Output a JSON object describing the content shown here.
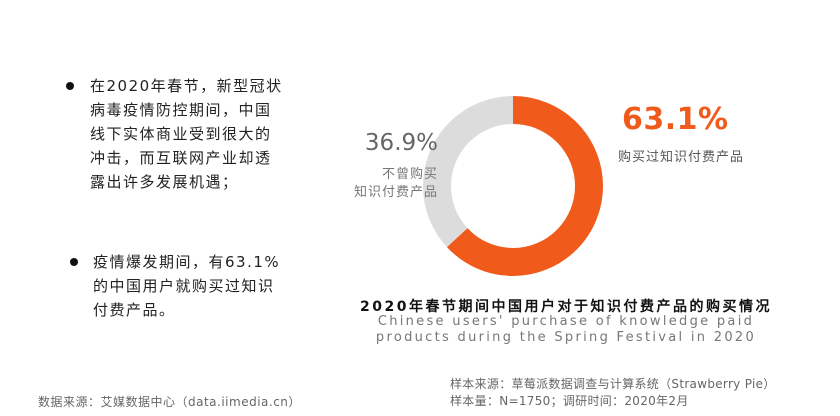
{
  "bullets": [
    {
      "text": "在2020年春节，新型冠状\n病毒疫情防控期间，中国\n线下实体商业受到很大的\n冲击，而互联网产业却透\n露出许多发展机遇；"
    },
    {
      "text": "疫情爆发期间，有63.1%\n的中国用户就购买过知识\n付费产品。"
    }
  ],
  "chart_data": {
    "type": "pie",
    "donut": true,
    "title": "2020年春节期间中国用户对于知识付费产品的购买情况",
    "subtitle": "Chinese users' purchase of knowledge paid\nproducts during the Spring Festival in 2020",
    "slices": [
      {
        "label": "购买过知识付费产品",
        "value": 63.1,
        "display": "63.1%",
        "color": "#f05a1a"
      },
      {
        "label": "不曾购买\n知识付费产品",
        "value": 36.9,
        "display": "36.9%",
        "color": "#dcdcdc"
      }
    ]
  },
  "footer": {
    "source_left": "数据来源：艾媒数据中心（data.iimedia.cn）",
    "source_right": "样本来源：草莓派数据调查与计算系统（Strawberry Pie）\n样本量：N=1750；调研时间：2020年2月"
  }
}
